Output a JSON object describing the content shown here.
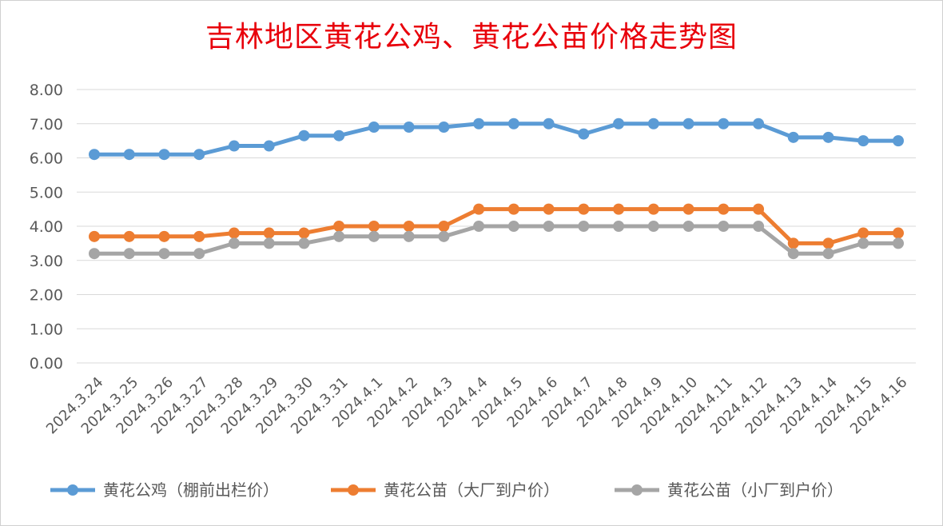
{
  "chart_data": {
    "type": "line",
    "title": "吉林地区黄花公鸡、黄花公苗价格走势图",
    "xlabel": "",
    "ylabel": "",
    "ylim": [
      0,
      8
    ],
    "y_ticks": [
      "0.00",
      "1.00",
      "2.00",
      "3.00",
      "4.00",
      "5.00",
      "6.00",
      "7.00",
      "8.00"
    ],
    "grid": true,
    "legend_position": "bottom",
    "categories": [
      "2024.3.24",
      "2024.3.25",
      "2024.3.26",
      "2024.3.27",
      "2024.3.28",
      "2024.3.29",
      "2024.3.30",
      "2024.3.31",
      "2024.4.1",
      "2024.4.2",
      "2024.4.3",
      "2024.4.4",
      "2024.4.5",
      "2024.4.6",
      "2024.4.7",
      "2024.4.8",
      "2024.4.9",
      "2024.4.10",
      "2024.4.11",
      "2024.4.12",
      "2024.4.13",
      "2024.4.14",
      "2024.4.15",
      "2024.4.16"
    ],
    "series": [
      {
        "name": "黄花公鸡（棚前出栏价）",
        "color": "#5b9bd5",
        "values": [
          6.1,
          6.1,
          6.1,
          6.1,
          6.35,
          6.35,
          6.65,
          6.65,
          6.9,
          6.9,
          6.9,
          7.0,
          7.0,
          7.0,
          6.7,
          7.0,
          7.0,
          7.0,
          7.0,
          7.0,
          6.6,
          6.6,
          6.5,
          6.5
        ]
      },
      {
        "name": "黄花公苗（大厂到户价）",
        "color": "#ed7d31",
        "values": [
          3.7,
          3.7,
          3.7,
          3.7,
          3.8,
          3.8,
          3.8,
          4.0,
          4.0,
          4.0,
          4.0,
          4.5,
          4.5,
          4.5,
          4.5,
          4.5,
          4.5,
          4.5,
          4.5,
          4.5,
          3.5,
          3.5,
          3.8,
          3.8
        ]
      },
      {
        "name": "黄花公苗（小厂到户价）",
        "color": "#a5a5a5",
        "values": [
          3.2,
          3.2,
          3.2,
          3.2,
          3.5,
          3.5,
          3.5,
          3.7,
          3.7,
          3.7,
          3.7,
          4.0,
          4.0,
          4.0,
          4.0,
          4.0,
          4.0,
          4.0,
          4.0,
          4.0,
          3.2,
          3.2,
          3.5,
          3.5
        ]
      }
    ]
  }
}
